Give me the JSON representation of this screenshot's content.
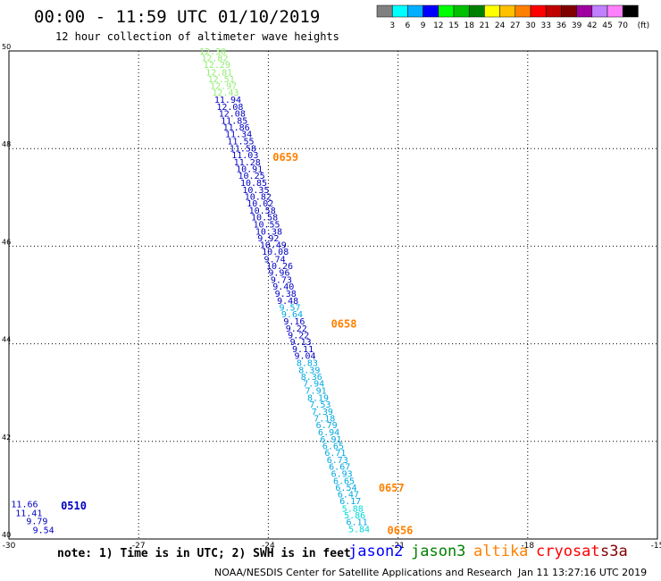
{
  "header": {
    "title": "00:00 - 11:59 UTC 01/10/2019",
    "subtitle": "12 hour collection of altimeter wave heights"
  },
  "colorbar": {
    "colors": [
      "#808080",
      "#00ffff",
      "#00b0ff",
      "#0000ff",
      "#00ff00",
      "#00c000",
      "#008000",
      "#ffff00",
      "#ffc000",
      "#ff8000",
      "#ff0000",
      "#c00000",
      "#800000",
      "#a000a0",
      "#c080ff",
      "#ff80ff",
      "#000000"
    ],
    "labels": [
      "3",
      "6",
      "9",
      "12",
      "15",
      "18",
      "21",
      "24",
      "27",
      "30",
      "33",
      "36",
      "39",
      "42",
      "45",
      "70"
    ],
    "unit": "(ft)"
  },
  "notes": {
    "note": "note: 1) Time is in UTC; 2) SWH is in feet"
  },
  "satellites": [
    {
      "name": "jason2",
      "color": "#0000ff"
    },
    {
      "name": "jason3",
      "color": "#008000"
    },
    {
      "name": "altika",
      "color": "#ff8000"
    },
    {
      "name": "cryosat",
      "color": "#ff0000"
    },
    {
      "name": "s3a",
      "color": "#800000"
    }
  ],
  "footer": {
    "left": "NOAA/NESDIS Center for Satellite Applications and Research",
    "right": "Jan 11 13:27:16 UTC 2019"
  },
  "chart_data": {
    "type": "scatter",
    "xlim": [
      -30,
      -15
    ],
    "ylim": [
      40,
      50
    ],
    "xticks": [
      "-30",
      "-27",
      "-24",
      "-21",
      "-18",
      "-15"
    ],
    "yticks": [
      "40",
      "42",
      "44",
      "46",
      "48",
      "50"
    ],
    "grid": true,
    "track": [
      {
        "lon": -25.6,
        "lat": 49.93,
        "swh": "12.30",
        "color": "#90ee70"
      },
      {
        "lon": -25.55,
        "lat": 49.79,
        "swh": "12.82",
        "color": "#90ee70"
      },
      {
        "lon": -25.5,
        "lat": 49.65,
        "swh": "12.29",
        "color": "#90ee70"
      },
      {
        "lon": -25.45,
        "lat": 49.5,
        "swh": "12.81",
        "color": "#90ee70"
      },
      {
        "lon": -25.4,
        "lat": 49.36,
        "swh": "12.51",
        "color": "#90ee70"
      },
      {
        "lon": -25.35,
        "lat": 49.22,
        "swh": "12.97",
        "color": "#90ee70"
      },
      {
        "lon": -25.3,
        "lat": 49.08,
        "swh": "12.43",
        "color": "#90ee70"
      },
      {
        "lon": -25.25,
        "lat": 48.94,
        "swh": "11.94",
        "color": "#0000c0"
      },
      {
        "lon": -25.2,
        "lat": 48.79,
        "swh": "12.08",
        "color": "#0000c0"
      },
      {
        "lon": -25.15,
        "lat": 48.65,
        "swh": "12.08",
        "color": "#0000c0"
      },
      {
        "lon": -25.1,
        "lat": 48.51,
        "swh": "11.85",
        "color": "#0000c0"
      },
      {
        "lon": -25.05,
        "lat": 48.37,
        "swh": "11.86",
        "color": "#0000c0"
      },
      {
        "lon": -25.0,
        "lat": 48.23,
        "swh": "11.34",
        "color": "#0000c0"
      },
      {
        "lon": -24.95,
        "lat": 48.09,
        "swh": "11.55",
        "color": "#0000c0"
      },
      {
        "lon": -24.9,
        "lat": 47.94,
        "swh": "11.58",
        "color": "#0000c0"
      },
      {
        "lon": -24.85,
        "lat": 47.8,
        "swh": "11.03",
        "color": "#0000c0"
      },
      {
        "lon": -24.8,
        "lat": 47.66,
        "swh": "11.28",
        "color": "#0000c0"
      },
      {
        "lon": -24.75,
        "lat": 47.52,
        "swh": "10.91",
        "color": "#0000c0"
      },
      {
        "lon": -24.7,
        "lat": 47.38,
        "swh": "10.25",
        "color": "#0000c0"
      },
      {
        "lon": -24.65,
        "lat": 47.23,
        "swh": "10.85",
        "color": "#0000c0"
      },
      {
        "lon": -24.6,
        "lat": 47.09,
        "swh": "10.35",
        "color": "#0000c0"
      },
      {
        "lon": -24.55,
        "lat": 46.95,
        "swh": "10.82",
        "color": "#0000c0"
      },
      {
        "lon": -24.5,
        "lat": 46.81,
        "swh": "10.02",
        "color": "#0000c0"
      },
      {
        "lon": -24.45,
        "lat": 46.67,
        "swh": "10.58",
        "color": "#0000c0"
      },
      {
        "lon": -24.4,
        "lat": 46.53,
        "swh": "10.58",
        "color": "#0000c0"
      },
      {
        "lon": -24.35,
        "lat": 46.38,
        "swh": "10.55",
        "color": "#0000c0"
      },
      {
        "lon": -24.3,
        "lat": 46.24,
        "swh": "10.38",
        "color": "#0000c0"
      },
      {
        "lon": -24.25,
        "lat": 46.1,
        "swh": "9.92",
        "color": "#0000c0"
      },
      {
        "lon": -24.2,
        "lat": 45.96,
        "swh": "10.49",
        "color": "#0000c0"
      },
      {
        "lon": -24.15,
        "lat": 45.82,
        "swh": "10.08",
        "color": "#0000c0"
      },
      {
        "lon": -24.1,
        "lat": 45.67,
        "swh": "9.74",
        "color": "#0000c0"
      },
      {
        "lon": -24.05,
        "lat": 45.53,
        "swh": "10.26",
        "color": "#0000c0"
      },
      {
        "lon": -24.0,
        "lat": 45.39,
        "swh": "9.96",
        "color": "#0000c0"
      },
      {
        "lon": -23.95,
        "lat": 45.25,
        "swh": "9.73",
        "color": "#0000c0"
      },
      {
        "lon": -23.9,
        "lat": 45.11,
        "swh": "9.40",
        "color": "#0000c0"
      },
      {
        "lon": -23.85,
        "lat": 44.96,
        "swh": "9.38",
        "color": "#0000c0"
      },
      {
        "lon": -23.8,
        "lat": 44.82,
        "swh": "9.48",
        "color": "#0000c0"
      },
      {
        "lon": -23.75,
        "lat": 44.68,
        "swh": "9.57",
        "color": "#00a8e0"
      },
      {
        "lon": -23.7,
        "lat": 44.54,
        "swh": "9.64",
        "color": "#00a8e0"
      },
      {
        "lon": -23.65,
        "lat": 44.4,
        "swh": "9.16",
        "color": "#0000c0"
      },
      {
        "lon": -23.6,
        "lat": 44.25,
        "swh": "9.22",
        "color": "#0000c0"
      },
      {
        "lon": -23.55,
        "lat": 44.11,
        "swh": "9.22",
        "color": "#0000c0"
      },
      {
        "lon": -23.5,
        "lat": 43.97,
        "swh": "9.13",
        "color": "#0000c0"
      },
      {
        "lon": -23.45,
        "lat": 43.83,
        "swh": "9.11",
        "color": "#0000c0"
      },
      {
        "lon": -23.4,
        "lat": 43.69,
        "swh": "9.04",
        "color": "#0000c0"
      },
      {
        "lon": -23.35,
        "lat": 43.54,
        "swh": "8.83",
        "color": "#00a8e0"
      },
      {
        "lon": -23.3,
        "lat": 43.4,
        "swh": "8.39",
        "color": "#00a8e0"
      },
      {
        "lon": -23.25,
        "lat": 43.26,
        "swh": "8.36",
        "color": "#00a8e0"
      },
      {
        "lon": -23.2,
        "lat": 43.12,
        "swh": "7.94",
        "color": "#00a8e0"
      },
      {
        "lon": -23.15,
        "lat": 42.98,
        "swh": "7.91",
        "color": "#00a8e0"
      },
      {
        "lon": -23.1,
        "lat": 42.83,
        "swh": "8.19",
        "color": "#00a8e0"
      },
      {
        "lon": -23.05,
        "lat": 42.69,
        "swh": "7.53",
        "color": "#00a8e0"
      },
      {
        "lon": -23.0,
        "lat": 42.55,
        "swh": "7.39",
        "color": "#00a8e0"
      },
      {
        "lon": -22.95,
        "lat": 42.41,
        "swh": "7.18",
        "color": "#00a8e0"
      },
      {
        "lon": -22.9,
        "lat": 42.27,
        "swh": "6.79",
        "color": "#00a8e0"
      },
      {
        "lon": -22.85,
        "lat": 42.12,
        "swh": "6.94",
        "color": "#00a8e0"
      },
      {
        "lon": -22.8,
        "lat": 41.98,
        "swh": "6.91",
        "color": "#00a8e0"
      },
      {
        "lon": -22.75,
        "lat": 41.84,
        "swh": "6.65",
        "color": "#00a8e0"
      },
      {
        "lon": -22.7,
        "lat": 41.7,
        "swh": "6.71",
        "color": "#00a8e0"
      },
      {
        "lon": -22.65,
        "lat": 41.56,
        "swh": "6.73",
        "color": "#00a8e0"
      },
      {
        "lon": -22.6,
        "lat": 41.42,
        "swh": "6.67",
        "color": "#00a8e0"
      },
      {
        "lon": -22.55,
        "lat": 41.27,
        "swh": "6.93",
        "color": "#00a8e0"
      },
      {
        "lon": -22.5,
        "lat": 41.13,
        "swh": "6.65",
        "color": "#00a8e0"
      },
      {
        "lon": -22.45,
        "lat": 40.99,
        "swh": "6.54",
        "color": "#00a8e0"
      },
      {
        "lon": -22.4,
        "lat": 40.85,
        "swh": "6.47",
        "color": "#00a8e0"
      },
      {
        "lon": -22.35,
        "lat": 40.71,
        "swh": "6.17",
        "color": "#00a8e0"
      },
      {
        "lon": -22.3,
        "lat": 40.56,
        "swh": "5.88",
        "color": "#00d8d8"
      },
      {
        "lon": -22.25,
        "lat": 40.42,
        "swh": "5.86",
        "color": "#00d8d8"
      },
      {
        "lon": -22.2,
        "lat": 40.28,
        "swh": "6.11",
        "color": "#00a8e0"
      },
      {
        "lon": -22.15,
        "lat": 40.14,
        "swh": "5.84",
        "color": "#00d8d8"
      }
    ],
    "time_labels": [
      {
        "text": "0659",
        "lon": -23.9,
        "lat": 47.75,
        "color": "#ff8000"
      },
      {
        "text": "0658",
        "lon": -22.55,
        "lat": 44.33,
        "color": "#ff8000"
      },
      {
        "text": "0657",
        "lon": -21.45,
        "lat": 40.97,
        "color": "#ff8000"
      },
      {
        "text": "0656",
        "lon": -21.25,
        "lat": 40.1,
        "color": "#ff8000"
      },
      {
        "text": "0510",
        "lon": -28.8,
        "lat": 40.6,
        "color": "#0000c0"
      }
    ],
    "corner_track": [
      {
        "swh": "11.66",
        "lon": -29.95,
        "lat": 40.65
      },
      {
        "swh": "11.41",
        "lon": -29.85,
        "lat": 40.47
      },
      {
        "swh": "9.79",
        "lon": -29.6,
        "lat": 40.3
      },
      {
        "swh": "9.54",
        "lon": -29.45,
        "lat": 40.12
      }
    ]
  }
}
